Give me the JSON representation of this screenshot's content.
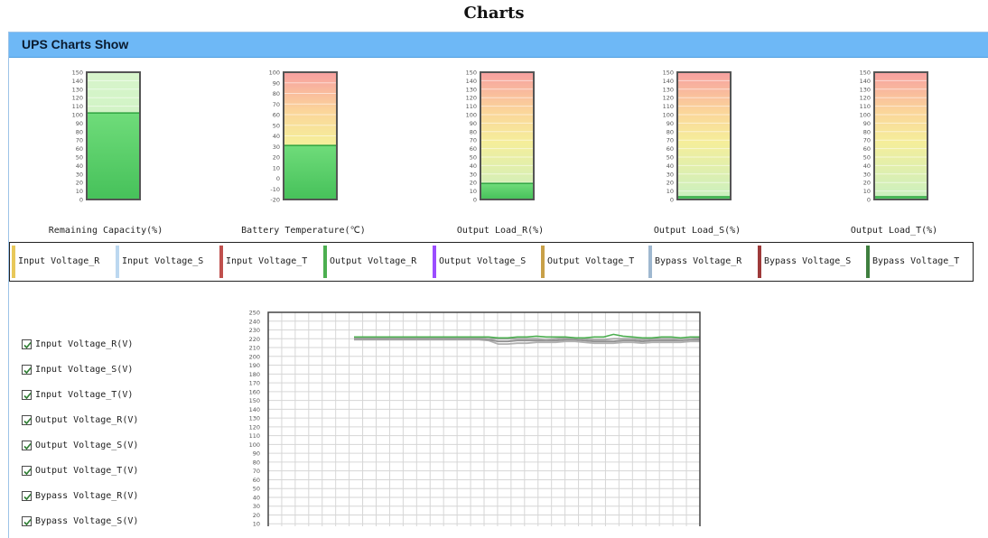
{
  "page": {
    "title": "Charts"
  },
  "panel": {
    "title": "UPS Charts Show"
  },
  "gauges": [
    {
      "label": "Remaining Capacity(%)",
      "ticks": [
        "150",
        "140",
        "130",
        "120",
        "110",
        "100",
        "90",
        "80",
        "70",
        "60",
        "50",
        "40",
        "30",
        "20",
        "10",
        "0"
      ],
      "min": 0,
      "max": 150,
      "value": 102,
      "style": "green"
    },
    {
      "label": "Battery Temperature(℃)",
      "ticks": [
        "100",
        "90",
        "80",
        "70",
        "60",
        "50",
        "40",
        "30",
        "20",
        "10",
        "0",
        "-10",
        "-20"
      ],
      "min": -20,
      "max": 100,
      "value": 31,
      "style": "warm"
    },
    {
      "label": "Output Load_R(%)",
      "ticks": [
        "150",
        "140",
        "130",
        "120",
        "110",
        "100",
        "90",
        "80",
        "70",
        "60",
        "50",
        "40",
        "30",
        "20",
        "10",
        "0"
      ],
      "min": 0,
      "max": 150,
      "value": 19,
      "style": "warm"
    },
    {
      "label": "Output Load_S(%)",
      "ticks": [
        "150",
        "140",
        "130",
        "120",
        "110",
        "100",
        "90",
        "80",
        "70",
        "60",
        "50",
        "40",
        "30",
        "20",
        "10",
        "0"
      ],
      "min": 0,
      "max": 150,
      "value": 0,
      "style": "warm"
    },
    {
      "label": "Output Load_T(%)",
      "ticks": [
        "150",
        "140",
        "130",
        "120",
        "110",
        "100",
        "90",
        "80",
        "70",
        "60",
        "50",
        "40",
        "30",
        "20",
        "10",
        "0"
      ],
      "min": 0,
      "max": 150,
      "value": 0,
      "style": "warm"
    }
  ],
  "legend": [
    {
      "label": "Input Voltage_R",
      "color": "#e8c85a"
    },
    {
      "label": "Input Voltage_S",
      "color": "#bcd8f0"
    },
    {
      "label": "Input Voltage_T",
      "color": "#c0504d"
    },
    {
      "label": "Output Voltage_R",
      "color": "#4caf50"
    },
    {
      "label": "Output Voltage_S",
      "color": "#9b4dff"
    },
    {
      "label": "Output Voltage_T",
      "color": "#c8a048"
    },
    {
      "label": "Bypass Voltage_R",
      "color": "#9fb8d0"
    },
    {
      "label": "Bypass Voltage_S",
      "color": "#9e3a3a"
    },
    {
      "label": "Bypass Voltage_T",
      "color": "#3f7f3f"
    }
  ],
  "checkboxes": [
    {
      "label": "Input Voltage_R(V)",
      "checked": true
    },
    {
      "label": "Input Voltage_S(V)",
      "checked": true
    },
    {
      "label": "Input Voltage_T(V)",
      "checked": true
    },
    {
      "label": "Output Voltage_R(V)",
      "checked": true
    },
    {
      "label": "Output Voltage_S(V)",
      "checked": true
    },
    {
      "label": "Output Voltage_T(V)",
      "checked": true
    },
    {
      "label": "Bypass Voltage_R(V)",
      "checked": true
    },
    {
      "label": "Bypass Voltage_S(V)",
      "checked": true
    }
  ],
  "chart_data": {
    "type": "line",
    "ylim": [
      0,
      250
    ],
    "yticks": [
      "250",
      "240",
      "230",
      "220",
      "210",
      "200",
      "190",
      "180",
      "170",
      "160",
      "150",
      "140",
      "130",
      "120",
      "110",
      "100",
      "90",
      "80",
      "70",
      "60",
      "50",
      "40",
      "30",
      "20",
      "10"
    ],
    "grid": true,
    "series": [
      {
        "name": "Output Voltage_R",
        "color": "#4caf50",
        "values": [
          222,
          222,
          222,
          222,
          222,
          222,
          222,
          222,
          222,
          222,
          222,
          222,
          222,
          222,
          222,
          221,
          221,
          222,
          222,
          223,
          222,
          222,
          222,
          221,
          221,
          222,
          222,
          225,
          223,
          222,
          221,
          221,
          222,
          222,
          221,
          222,
          222
        ]
      },
      {
        "name": "Input Voltage_S",
        "color": "#a8a8a8",
        "values": [
          221,
          221,
          221,
          221,
          221,
          221,
          221,
          221,
          221,
          221,
          221,
          221,
          221,
          221,
          220,
          220,
          220,
          220,
          220,
          220,
          219,
          220,
          221,
          221,
          220,
          219,
          219,
          220,
          220,
          220,
          219,
          220,
          220,
          220,
          219,
          220,
          221
        ]
      },
      {
        "name": "Input Voltage_T",
        "color": "#909090",
        "values": [
          220,
          220,
          220,
          220,
          220,
          220,
          220,
          220,
          220,
          220,
          220,
          220,
          220,
          220,
          219,
          217,
          217,
          218,
          218,
          218,
          218,
          218,
          219,
          219,
          218,
          217,
          217,
          217,
          218,
          218,
          217,
          218,
          218,
          218,
          218,
          219,
          219
        ]
      },
      {
        "name": "Bypass Voltage_R",
        "color": "#b0b0b0",
        "values": [
          219,
          219,
          219,
          219,
          219,
          219,
          219,
          219,
          219,
          219,
          219,
          219,
          219,
          219,
          218,
          214,
          214,
          215,
          215,
          216,
          216,
          216,
          217,
          217,
          216,
          215,
          215,
          215,
          216,
          216,
          215,
          216,
          216,
          216,
          216,
          217,
          217
        ]
      }
    ],
    "x_point_count": 37
  }
}
